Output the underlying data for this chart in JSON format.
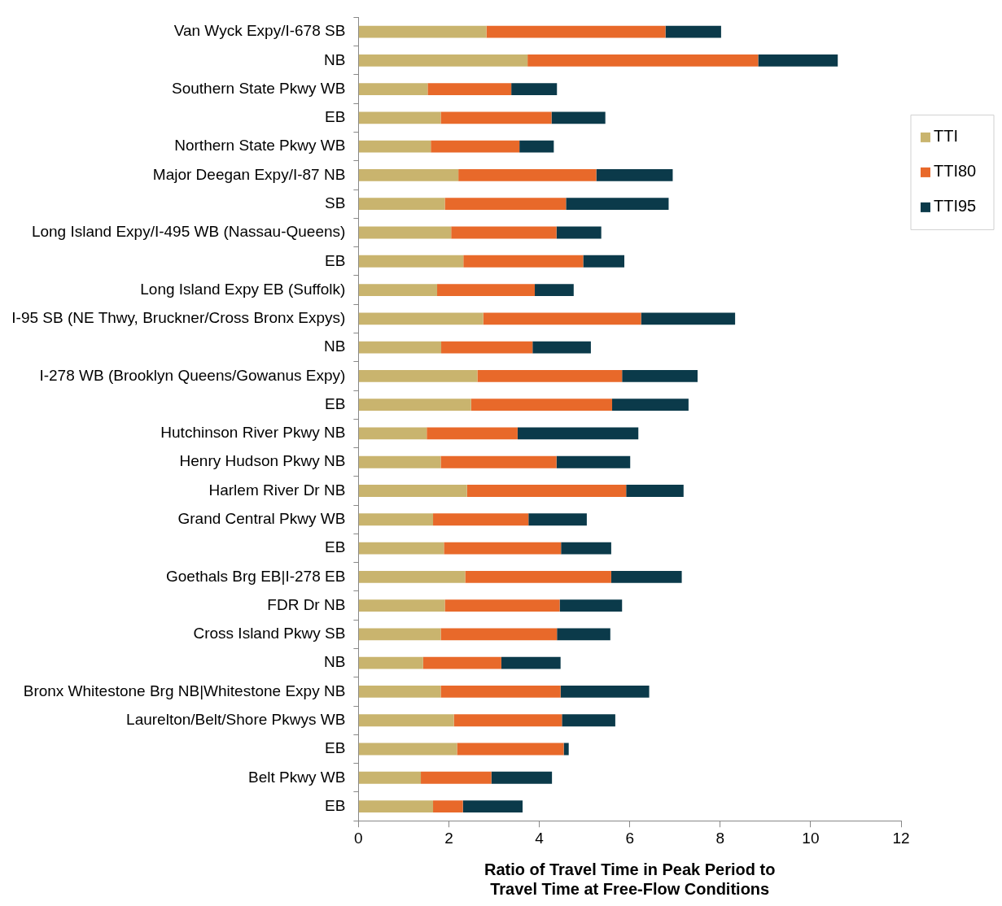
{
  "chart_data": {
    "type": "bar",
    "orientation": "horizontal",
    "stacked": true,
    "xlabel": "Ratio of Travel Time in Peak Period to\nTravel Time at Free-Flow Conditions",
    "categories": [
      "Van Wyck Expy/I-678 SB",
      "NB",
      "Southern State Pkwy WB",
      "EB",
      "Northern State Pkwy WB",
      "Major Deegan Expy/I-87 NB",
      "SB",
      "Long Island Expy/I-495 WB (Nassau-Queens)",
      "EB",
      "Long Island Expy EB (Suffolk)",
      "I-95 SB (NE Thwy, Bruckner/Cross Bronx Expys)",
      "NB",
      "I-278 WB (Brooklyn Queens/Gowanus Expy)",
      "EB",
      "Hutchinson River Pkwy NB",
      "Henry Hudson Pkwy NB",
      "Harlem River Dr NB",
      "Grand Central Pkwy WB",
      "EB",
      "Goethals Brg EB|I-278 EB",
      "FDR Dr NB",
      "Cross Island Pkwy SB",
      "NB",
      "Bronx Whitestone Brg NB|Whitestone Expy NB",
      "Laurelton/Belt/Shore Pkwys WB",
      "EB",
      "Belt Pkwy WB",
      "EB"
    ],
    "series": [
      {
        "name": "TTI",
        "color": "#c9b46e",
        "values": [
          2.83,
          3.74,
          1.53,
          1.82,
          1.6,
          2.21,
          1.91,
          2.05,
          2.32,
          1.74,
          2.76,
          1.83,
          2.63,
          2.49,
          1.51,
          1.82,
          2.4,
          1.65,
          1.89,
          2.36,
          1.91,
          1.82,
          1.43,
          1.82,
          2.11,
          2.18,
          1.38,
          1.65
        ]
      },
      {
        "name": "TTI80",
        "color": "#e8692a",
        "values": [
          3.96,
          5.1,
          1.85,
          2.45,
          1.96,
          3.05,
          2.68,
          2.33,
          2.65,
          2.16,
          3.49,
          2.02,
          3.2,
          3.12,
          2.01,
          2.56,
          3.52,
          2.11,
          2.59,
          3.23,
          2.54,
          2.57,
          1.73,
          2.65,
          2.39,
          2.36,
          1.56,
          0.66
        ]
      },
      {
        "name": "TTI95",
        "color": "#0b3a4a",
        "values": [
          1.23,
          1.76,
          1.01,
          1.19,
          0.76,
          1.69,
          2.27,
          0.99,
          0.91,
          0.86,
          2.08,
          1.29,
          1.67,
          1.69,
          2.67,
          1.63,
          1.27,
          1.29,
          1.11,
          1.56,
          1.38,
          1.18,
          1.31,
          1.96,
          1.18,
          0.11,
          1.34,
          1.32
        ]
      }
    ],
    "xlim": [
      0,
      12
    ],
    "xticks": [
      0,
      2,
      4,
      6,
      8,
      10,
      12
    ],
    "grid": false,
    "legend": "right"
  }
}
